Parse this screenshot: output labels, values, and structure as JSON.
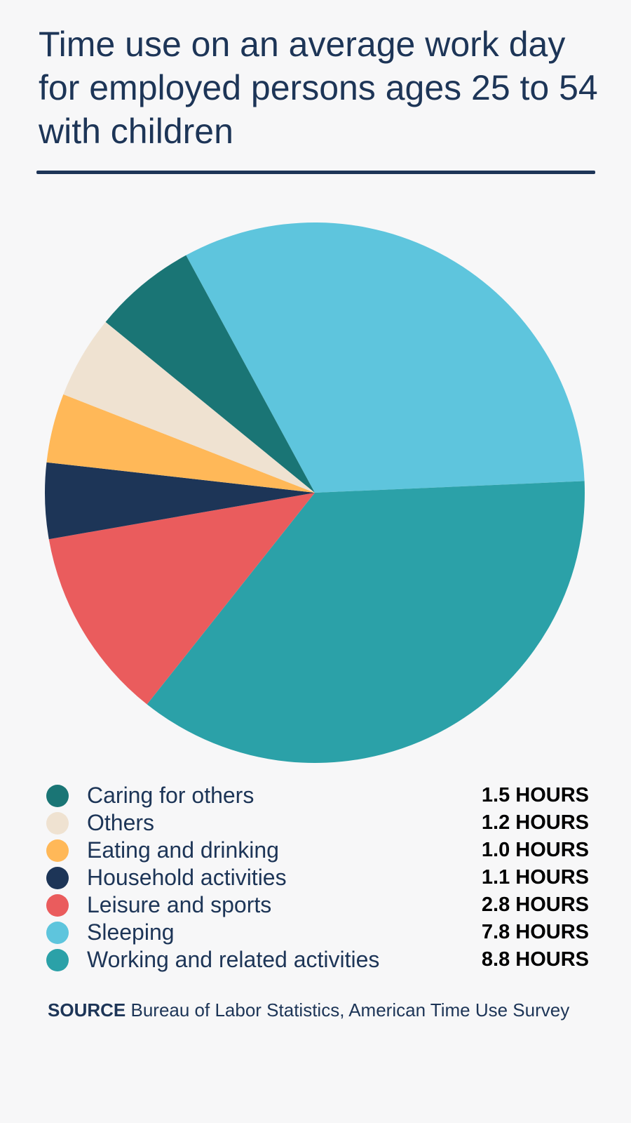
{
  "chart_data": {
    "type": "pie",
    "title": "Time use on an average work day for employed persons ages 25 to 54 with children",
    "unit_label": "HOURS",
    "slices": [
      {
        "name": "Caring for others",
        "value": 1.5,
        "display": "1.5 HOURS",
        "color": "#1a7575"
      },
      {
        "name": "Others",
        "value": 1.2,
        "display": "1.2 HOURS",
        "color": "#efe2d1"
      },
      {
        "name": "Eating and drinking",
        "value": 1.0,
        "display": "1.0 HOURS",
        "color": "#ffb858"
      },
      {
        "name": "Household activities",
        "value": 1.1,
        "display": "1.1 HOURS",
        "color": "#1d3557"
      },
      {
        "name": "Leisure and sports",
        "value": 2.8,
        "display": "2.8 HOURS",
        "color": "#ea5c5d"
      },
      {
        "name": "Sleeping",
        "value": 7.8,
        "display": "7.8 HOURS",
        "color": "#5ec5dd"
      },
      {
        "name": "Working and related activities",
        "value": 8.8,
        "display": "8.8 HOURS",
        "color": "#2ba1a8"
      }
    ],
    "legend_position": "bottom"
  },
  "source": {
    "label": "SOURCE",
    "text": "Bureau of Labor Statistics, American Time Use Survey"
  }
}
